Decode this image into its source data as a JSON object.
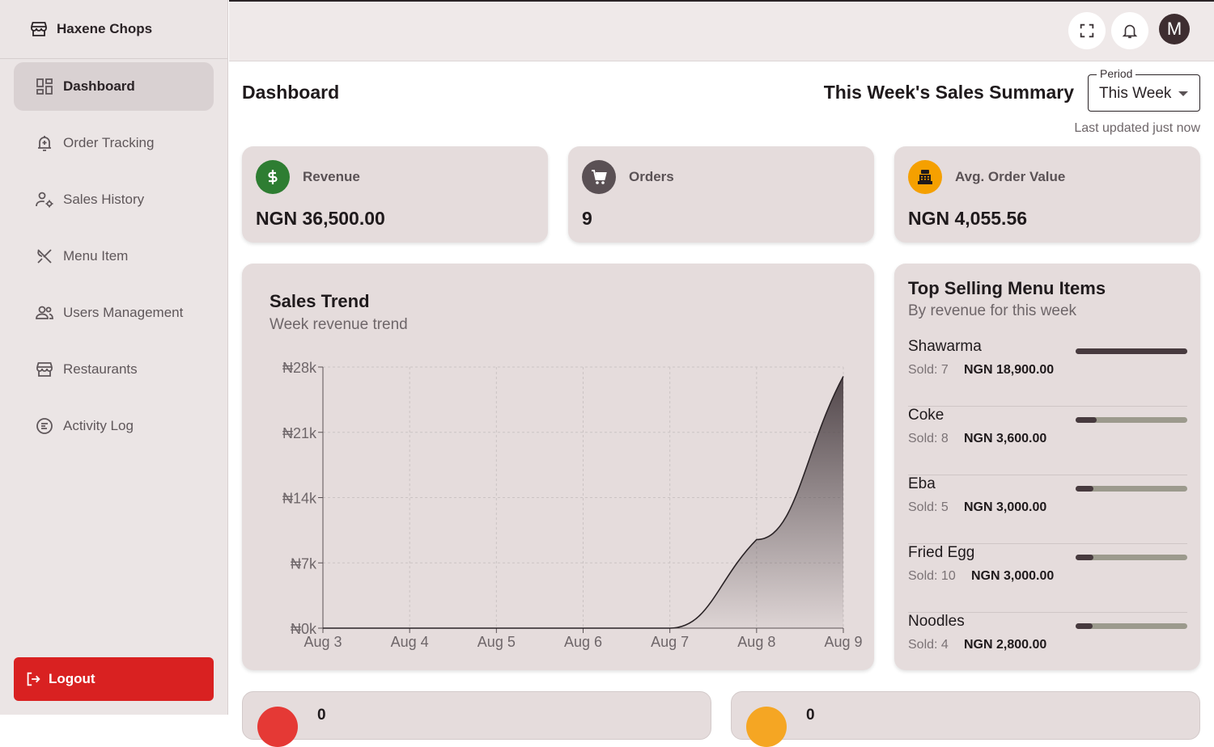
{
  "brand": {
    "name": "Haxene Chops"
  },
  "sidebar": {
    "items": [
      {
        "label": "Dashboard",
        "icon": "dashboard-icon",
        "active": true
      },
      {
        "label": "Order Tracking",
        "icon": "bell-tracking-icon"
      },
      {
        "label": "Sales History",
        "icon": "user-gear-icon"
      },
      {
        "label": "Menu Item",
        "icon": "utensils-icon"
      },
      {
        "label": "Users Management",
        "icon": "users-icon"
      },
      {
        "label": "Restaurants",
        "icon": "store-icon"
      },
      {
        "label": "Activity Log",
        "icon": "activity-icon"
      }
    ],
    "logout_label": "Logout"
  },
  "topbar": {
    "avatar_letter": "M"
  },
  "header": {
    "title": "Dashboard",
    "summary_title": "This Week's Sales Summary",
    "period_label": "Period",
    "period_value": "This Week",
    "last_updated": "Last updated just now"
  },
  "stats": [
    {
      "label": "Revenue",
      "value": "NGN 36,500.00",
      "icon": "dollar-icon",
      "color": "#2e7d32"
    },
    {
      "label": "Orders",
      "value": "9",
      "icon": "cart-icon",
      "color": "#5a5054"
    },
    {
      "label": "Avg. Order Value",
      "value": "NGN 4,055.56",
      "icon": "register-icon",
      "color": "#f5a000"
    }
  ],
  "chart": {
    "title": "Sales Trend",
    "subtitle": "Week revenue trend"
  },
  "chart_data": {
    "type": "area",
    "categories": [
      "Aug 3",
      "Aug 4",
      "Aug 5",
      "Aug 6",
      "Aug 7",
      "Aug 8",
      "Aug 9"
    ],
    "values": [
      0,
      0,
      0,
      0,
      0,
      9500,
      27000
    ],
    "yticks": [
      "₦0k",
      "₦7k",
      "₦14k",
      "₦21k",
      "₦28k"
    ],
    "ylim": [
      0,
      28000
    ],
    "grid": true
  },
  "top_selling": {
    "title": "Top Selling Menu Items",
    "subtitle": "By revenue for this week",
    "items": [
      {
        "name": "Shawarma",
        "sold": "Sold: 7",
        "amount": "NGN 18,900.00",
        "fraction": 1.0
      },
      {
        "name": "Coke",
        "sold": "Sold: 8",
        "amount": "NGN 3,600.00",
        "fraction": 0.19
      },
      {
        "name": "Eba",
        "sold": "Sold: 5",
        "amount": "NGN 3,000.00",
        "fraction": 0.16
      },
      {
        "name": "Fried Egg",
        "sold": "Sold: 10",
        "amount": "NGN 3,000.00",
        "fraction": 0.16
      },
      {
        "name": "Noodles",
        "sold": "Sold: 4",
        "amount": "NGN 2,800.00",
        "fraction": 0.15
      }
    ]
  },
  "bottom_cards": [
    {
      "value": "0",
      "color": "#e53935"
    },
    {
      "value": "0",
      "color": "#f5a623"
    }
  ]
}
